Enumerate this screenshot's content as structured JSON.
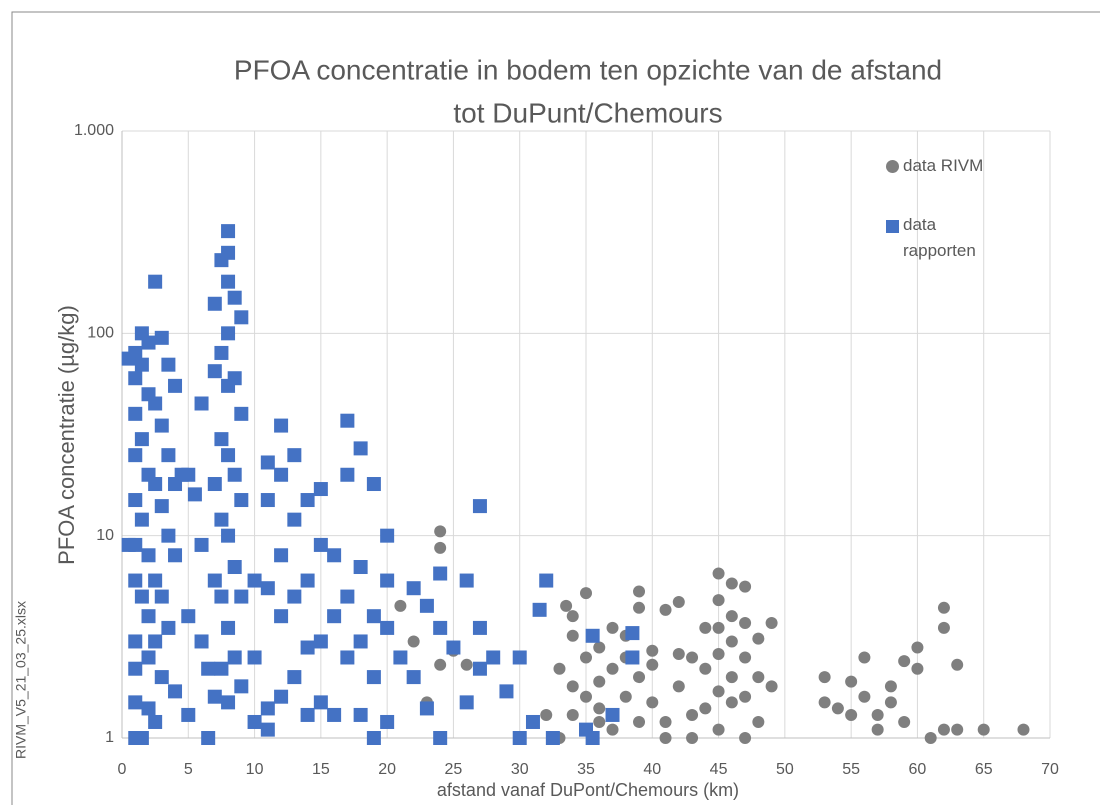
{
  "chart_data": {
    "type": "scatter",
    "title": [
      "PFOA concentratie in bodem ten opzichte van de afstand",
      "tot DuPunt/Chemours"
    ],
    "x_label": "afstand vanaf DuPont/Chemours (km)",
    "y_label": "PFOA concentratie  (µg/kg)",
    "side_note": "RIVM_V5_21_03_25.xlsx",
    "xlim": [
      0,
      70
    ],
    "xticks": [
      0,
      5,
      10,
      15,
      20,
      25,
      30,
      35,
      40,
      45,
      50,
      55,
      60,
      65,
      70
    ],
    "ylim": [
      1,
      1000
    ],
    "yticks": [
      1,
      10,
      100,
      {
        "value": 1000,
        "label": "1.000"
      }
    ],
    "log_y": true,
    "grid": true,
    "legend": "top-right",
    "series": [
      {
        "name": "data RIVM",
        "color": "#7f7f7f",
        "marker": "circle",
        "x": [
          21,
          22,
          24,
          24,
          24,
          23,
          25,
          26,
          33,
          33.5,
          34,
          34,
          34,
          34,
          35,
          35,
          35,
          36,
          36,
          36,
          37,
          37,
          37,
          38,
          38,
          39,
          39,
          39,
          39,
          40,
          40,
          41,
          41,
          42,
          42,
          42,
          43,
          43,
          44,
          44,
          44,
          45,
          45,
          45,
          45,
          45,
          45,
          46,
          46,
          46,
          46,
          46,
          47,
          47,
          47,
          47,
          47,
          48,
          48,
          48,
          49,
          49,
          53,
          53,
          54,
          55,
          55,
          56,
          56,
          57,
          57,
          58,
          58,
          59,
          59,
          60,
          60,
          61,
          62,
          62,
          62,
          63,
          63,
          65,
          68,
          32,
          33,
          36,
          41,
          43,
          40,
          38
        ],
        "y": [
          4.5,
          3,
          10.5,
          8.7,
          2.3,
          1.5,
          2.7,
          2.3,
          2.2,
          4.5,
          4,
          3.2,
          1.8,
          1.3,
          2.5,
          1.6,
          5.2,
          2.8,
          1.9,
          1.4,
          3.5,
          2.2,
          1.1,
          1.6,
          2.5,
          5.3,
          4.4,
          2,
          1.2,
          2.3,
          1.5,
          4.3,
          1.2,
          4.7,
          2.6,
          1.8,
          2.5,
          1.3,
          3.5,
          2.2,
          1.4,
          6.5,
          4.8,
          3.5,
          2.6,
          1.7,
          1.1,
          5.8,
          4,
          3,
          2,
          1.5,
          5.6,
          3.7,
          2.5,
          1.6,
          1,
          3.1,
          2,
          1.2,
          3.7,
          1.8,
          2,
          1.5,
          1.4,
          1.9,
          1.3,
          2.5,
          1.6,
          1.3,
          1.1,
          1.8,
          1.5,
          2.4,
          1.2,
          2.8,
          2.2,
          1,
          4.4,
          3.5,
          1.1,
          2.3,
          1.1,
          1.1,
          1.1,
          1.3,
          1,
          1.2,
          1,
          1,
          2.7,
          3.2
        ]
      },
      {
        "name": "data rapporten",
        "color": "#4472c4",
        "marker": "square",
        "x": [
          1,
          1,
          1,
          1,
          1,
          1,
          1,
          1,
          1,
          1,
          1.5,
          1.5,
          1.5,
          1.5,
          1.5,
          1.5,
          2,
          2,
          2,
          2,
          2,
          2,
          2,
          2.5,
          2.5,
          2.5,
          2.5,
          2.5,
          2.5,
          3,
          3,
          3,
          3,
          3,
          3.5,
          3.5,
          3.5,
          3.5,
          4,
          4,
          4,
          4,
          4.5,
          5,
          5,
          5,
          5.5,
          6,
          6,
          6,
          6.5,
          6.5,
          7,
          7,
          7,
          7,
          7,
          7.5,
          7.5,
          7.5,
          7.5,
          7.5,
          7.5,
          8,
          8,
          8,
          8,
          8,
          8,
          8,
          8,
          8,
          8.5,
          8.5,
          8.5,
          8.5,
          8.5,
          9,
          9,
          9,
          9,
          9,
          10,
          10,
          10,
          11,
          11,
          11,
          11,
          11,
          12,
          12,
          12,
          12,
          12,
          13,
          13,
          13,
          13,
          14,
          14,
          14,
          14,
          15,
          15,
          15,
          15,
          16,
          16,
          16,
          17,
          17,
          17,
          17,
          18,
          18,
          18,
          18,
          19,
          19,
          19,
          19,
          20,
          20,
          20,
          20,
          21,
          22,
          22,
          23,
          23,
          24,
          24,
          24,
          25,
          26,
          26,
          27,
          27,
          27,
          28,
          29,
          30,
          30,
          31,
          32,
          32.5,
          31.5,
          35.5,
          35.5,
          37,
          38.5,
          38.5,
          35,
          0.5,
          0.5,
          1
        ],
        "y": [
          80,
          60,
          40,
          25,
          15,
          9,
          6,
          3,
          2.2,
          1.5,
          100,
          70,
          30,
          12,
          5,
          1,
          90,
          50,
          20,
          8,
          4,
          2.5,
          1.4,
          180,
          45,
          18,
          6,
          3,
          1.2,
          95,
          35,
          14,
          5,
          2,
          70,
          25,
          10,
          3.5,
          55,
          18,
          8,
          1.7,
          20,
          20,
          4,
          1.3,
          16,
          45,
          9,
          3,
          1,
          2.2,
          140,
          65,
          18,
          6,
          1.6,
          230,
          80,
          30,
          12,
          5,
          2.2,
          320,
          250,
          180,
          100,
          55,
          25,
          10,
          3.5,
          1.5,
          150,
          60,
          20,
          7,
          2.5,
          120,
          40,
          15,
          5,
          1.8,
          6,
          2.5,
          1.2,
          23,
          15,
          5.5,
          1.4,
          1.1,
          35,
          20,
          8,
          4,
          1.6,
          25,
          12,
          5,
          2,
          15,
          6,
          2.8,
          1.3,
          17,
          9,
          3,
          1.5,
          8,
          4,
          1.3,
          37,
          20,
          5,
          2.5,
          27,
          7,
          3,
          1.3,
          18,
          4,
          2,
          1,
          10,
          6,
          3.5,
          1.2,
          2.5,
          5.5,
          2,
          4.5,
          1.4,
          6.5,
          3.5,
          1,
          2.8,
          6,
          1.5,
          14,
          3.5,
          2.2,
          2.5,
          1.7,
          2.5,
          1,
          1.2,
          6,
          1,
          4.3,
          3.2,
          1,
          1.3,
          3.3,
          2.5,
          1.1,
          9,
          75,
          1
        ]
      }
    ]
  }
}
